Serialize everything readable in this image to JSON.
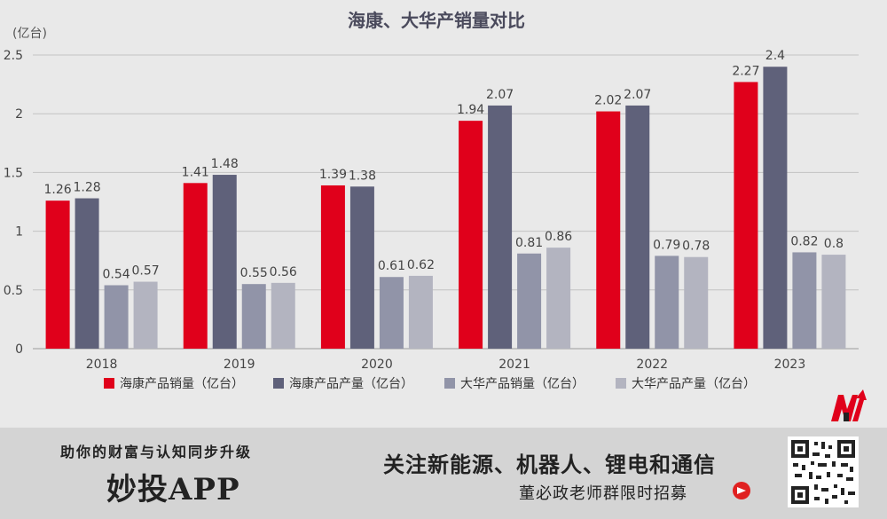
{
  "chart_data": {
    "type": "bar",
    "title": "海康、大华产销量对比",
    "unit_label": "(亿台)",
    "categories": [
      "2018",
      "2019",
      "2020",
      "2021",
      "2022",
      "2023"
    ],
    "ylim": [
      0,
      2.5
    ],
    "yticks": [
      "0",
      "0.5",
      "1",
      "1.5",
      "2",
      "2.5"
    ],
    "grid": true,
    "legend_position": "bottom",
    "series": [
      {
        "name": "海康产品销量（亿台）",
        "color": "#e0001b",
        "values": [
          1.26,
          1.41,
          1.39,
          1.94,
          2.02,
          2.27
        ],
        "labels": [
          "1.26",
          "1.41",
          "1.39",
          "1.94",
          "2.02",
          "2.27"
        ]
      },
      {
        "name": "海康产品产量（亿台）",
        "color": "#5f617a",
        "values": [
          1.28,
          1.48,
          1.38,
          2.07,
          2.07,
          2.4
        ],
        "labels": [
          "1.28",
          "1.48",
          "1.38",
          "2.07",
          "2.07",
          "2.4"
        ]
      },
      {
        "name": "大华产品销量（亿台）",
        "color": "#9194a8",
        "values": [
          0.54,
          0.55,
          0.61,
          0.81,
          0.79,
          0.82
        ],
        "labels": [
          "0.54",
          "0.55",
          "0.61",
          "0.81",
          "0.79",
          "0.82"
        ]
      },
      {
        "name": "大华产品产量（亿台）",
        "color": "#b3b4c0",
        "values": [
          0.57,
          0.56,
          0.62,
          0.86,
          0.78,
          0.8
        ],
        "labels": [
          "0.57",
          "0.56",
          "0.62",
          "0.86",
          "0.78",
          "0.8"
        ]
      }
    ]
  },
  "banner": {
    "slogan": "助你的财富与认知同步升级",
    "app_name": "妙投APP",
    "headline": "关注新能源、机器人、锂电和通信",
    "sub": "董必政老师群限时招募"
  },
  "colors": {
    "background": "#e9e9e9",
    "banner_bg": "#d4d4d4",
    "logo_red": "#e0001b",
    "logo_dark": "#222222"
  }
}
